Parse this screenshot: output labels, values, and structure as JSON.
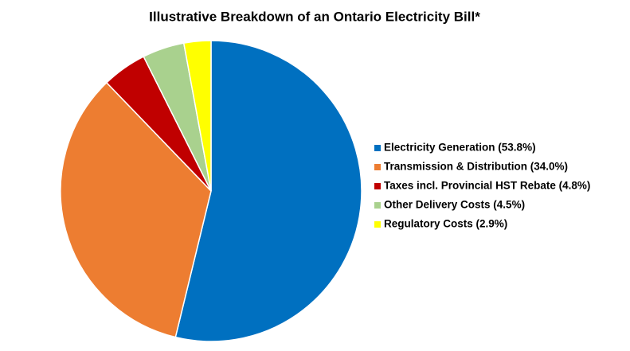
{
  "chart_data": {
    "type": "pie",
    "title": "Illustrative Breakdown of an Ontario Electricity Bill*",
    "categories": [
      "Electricity Generation (53.8%)",
      "Transmission & Distribution (34.0%)",
      "Taxes incl. Provincial HST Rebate (4.8%)",
      "Other Delivery Costs (4.5%)",
      "Regulatory Costs (2.9%)"
    ],
    "values": [
      53.8,
      34.0,
      4.8,
      4.5,
      2.9
    ],
    "colors": [
      "#0070c0",
      "#ed7d31",
      "#c00000",
      "#a9d18e",
      "#ffff00"
    ],
    "legend": "right"
  }
}
